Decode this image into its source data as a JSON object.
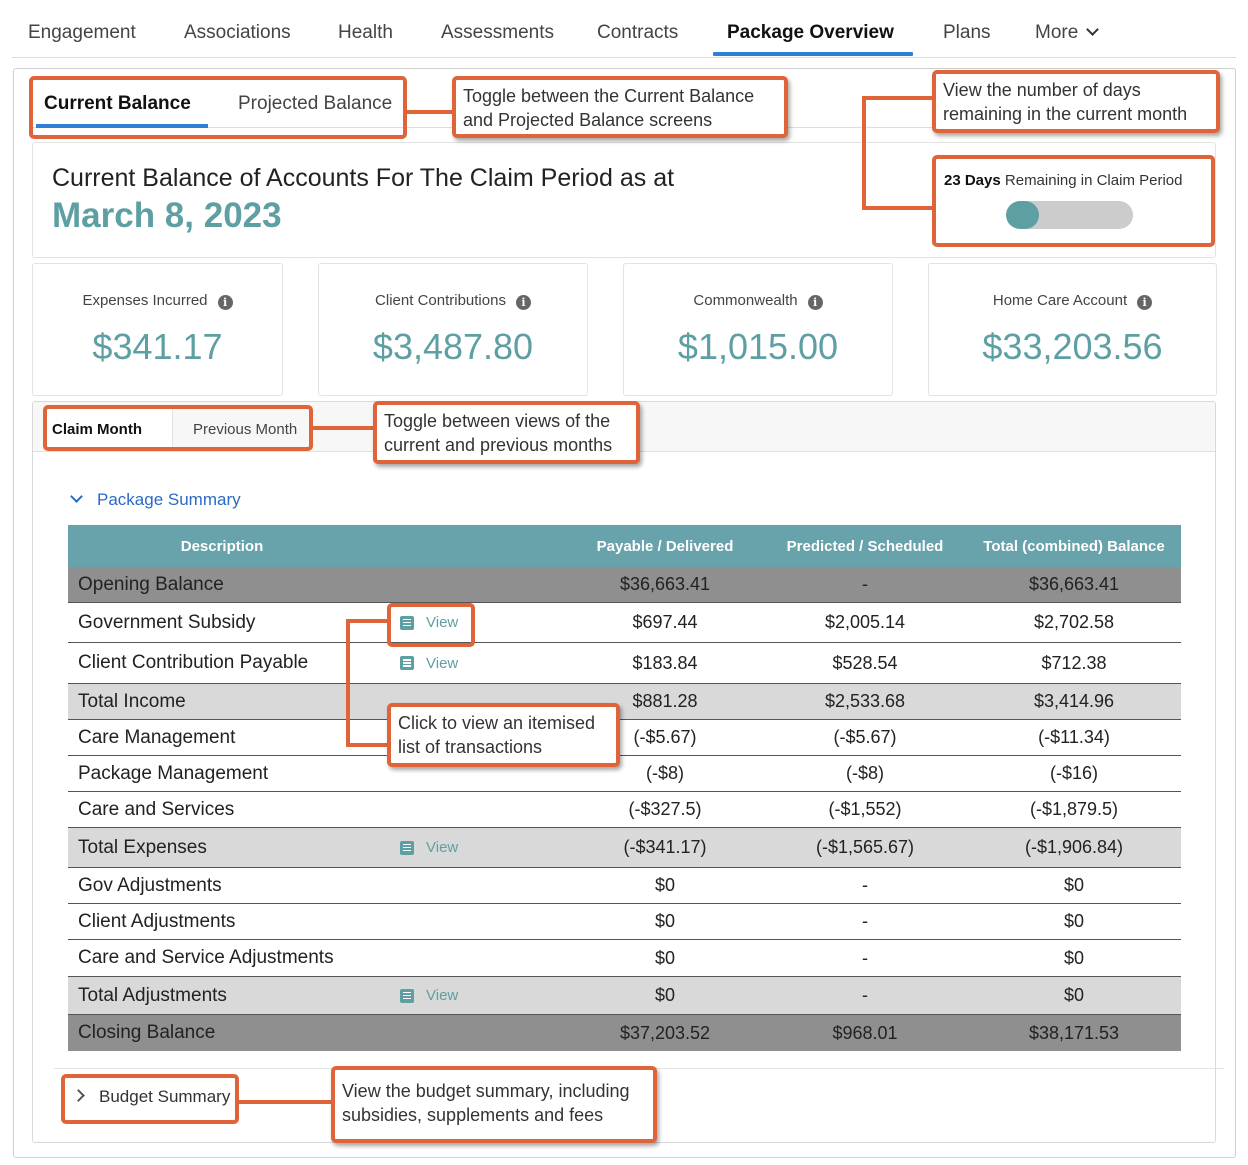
{
  "nav": {
    "tabs": [
      "Engagement",
      "Associations",
      "Health",
      "Assessments",
      "Contracts",
      "Package Overview",
      "Plans"
    ],
    "more": "More",
    "active": "Package Overview"
  },
  "balance_tabs": {
    "current": "Current Balance",
    "projected": "Projected Balance"
  },
  "header": {
    "title": "Current Balance of Accounts For The Claim Period as at",
    "date": "March 8, 2023",
    "days_count": "23 Days",
    "days_text": "Remaining in Claim Period",
    "days_progress_fraction": 0.26
  },
  "stats": [
    {
      "label": "Expenses Incurred",
      "value": "$341.17"
    },
    {
      "label": "Client Contributions",
      "value": "$3,487.80"
    },
    {
      "label": "Commonwealth",
      "value": "$1,015.00"
    },
    {
      "label": "Home Care Account",
      "value": "$33,203.56"
    }
  ],
  "month_tabs": {
    "claim": "Claim Month",
    "previous": "Previous Month"
  },
  "package_summary": {
    "label": "Package Summary",
    "columns": [
      "Description",
      "Payable / Delivered",
      "Predicted / Scheduled",
      "Total (combined) Balance"
    ],
    "view_label": "View",
    "rows": [
      {
        "desc": "Opening Balance",
        "pay": "$36,663.41",
        "pred": "-",
        "tot": "$36,663.41"
      },
      {
        "desc": "Government Subsidy",
        "pay": "$697.44",
        "pred": "$2,005.14",
        "tot": "$2,702.58"
      },
      {
        "desc": "Client Contribution Payable",
        "pay": "$183.84",
        "pred": "$528.54",
        "tot": "$712.38"
      },
      {
        "desc": "Total Income",
        "pay": "$881.28",
        "pred": "$2,533.68",
        "tot": "$3,414.96"
      },
      {
        "desc": "Care Management",
        "pay": "(-$5.67)",
        "pred": "(-$5.67)",
        "tot": "(-$11.34)"
      },
      {
        "desc": "Package Management",
        "pay": "(-$8)",
        "pred": "(-$8)",
        "tot": "(-$16)"
      },
      {
        "desc": "Care and Services",
        "pay": "(-$327.5)",
        "pred": "(-$1,552)",
        "tot": "(-$1,879.5)"
      },
      {
        "desc": "Total Expenses",
        "pay": "(-$341.17)",
        "pred": "(-$1,565.67)",
        "tot": "(-$1,906.84)"
      },
      {
        "desc": "Gov Adjustments",
        "pay": "$0",
        "pred": "-",
        "tot": "$0"
      },
      {
        "desc": "Client Adjustments",
        "pay": "$0",
        "pred": "-",
        "tot": "$0"
      },
      {
        "desc": "Care and Service Adjustments",
        "pay": "$0",
        "pred": "-",
        "tot": "$0"
      },
      {
        "desc": "Total Adjustments",
        "pay": "$0",
        "pred": "-",
        "tot": "$0"
      },
      {
        "desc": "Closing Balance",
        "pay": "$37,203.52",
        "pred": "$968.01",
        "tot": "$38,171.53"
      }
    ]
  },
  "budget_summary": {
    "label": "Budget Summary"
  },
  "callouts": {
    "balance_toggle": [
      "Toggle between the Current Balance",
      "and Projected Balance screens"
    ],
    "days": [
      "View the number of days",
      "remaining in the current month"
    ],
    "month_toggle": [
      "Toggle between views of the",
      "current and previous months"
    ],
    "itemised": [
      "Click to view an itemised",
      "list of transactions"
    ],
    "budget": [
      "View the budget summary, including",
      "subsidies, supplements and fees"
    ]
  },
  "colors": {
    "accent": "#5e9fa3",
    "callout": "#e0643a",
    "header_row": "#68a3ab",
    "active_tab": "#2f7fd6"
  }
}
